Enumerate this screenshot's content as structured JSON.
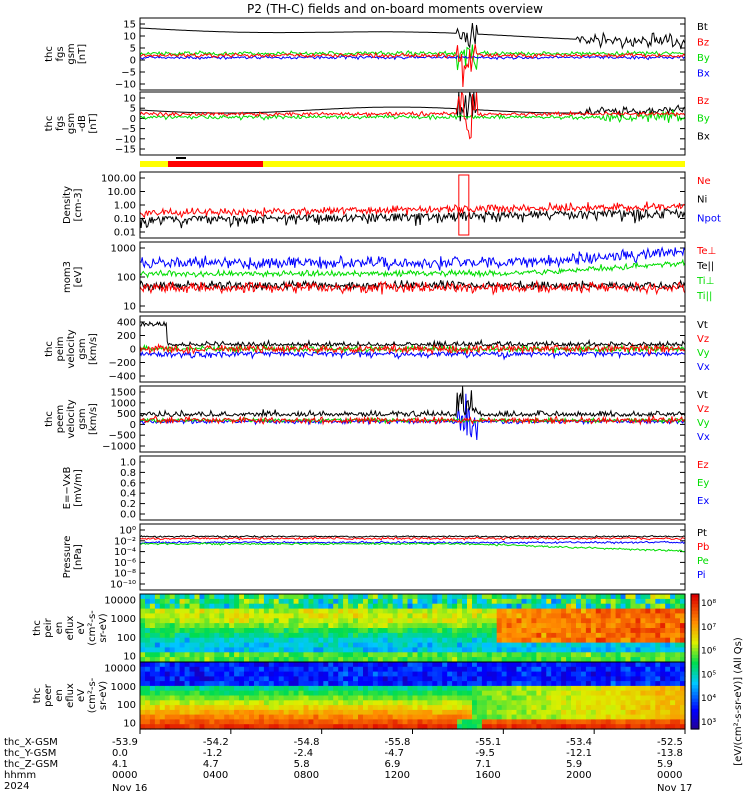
{
  "title": "P2 (TH-C) fields and on-board moments overview",
  "colors": {
    "black": "#000000",
    "red": "#ff0000",
    "green": "#00dd00",
    "blue": "#0000ff",
    "yellow": "#ffff00"
  },
  "panels": [
    {
      "ylabel": [
        "thc",
        "fgs",
        "gsm",
        "[nT]"
      ],
      "ticks": [
        "15",
        "10",
        "5",
        "0",
        "−5",
        "−10"
      ],
      "legend": [
        {
          "t": "Bt",
          "c": "black"
        },
        {
          "t": "Bz",
          "c": "red"
        },
        {
          "t": "By",
          "c": "green"
        },
        {
          "t": "Bx",
          "c": "blue"
        }
      ]
    },
    {
      "ylabel": [
        "thc",
        "fgs",
        "gsm",
        "-dB",
        "[nT]"
      ],
      "ticks": [
        "10",
        "5",
        "0",
        "−5",
        "−10",
        "−15"
      ],
      "legend": [
        {
          "t": "Bz",
          "c": "red"
        },
        {
          "t": "By",
          "c": "green"
        },
        {
          "t": "Bx",
          "c": "black"
        }
      ]
    },
    {
      "ylabel": [
        "Density",
        "[cm-3]"
      ],
      "ticks": [
        "100.00",
        "10.00",
        "1.00",
        "0.10",
        "0.01"
      ],
      "legend": [
        {
          "t": "Ne",
          "c": "red"
        },
        {
          "t": "Ni",
          "c": "black"
        },
        {
          "t": "Npot",
          "c": "blue"
        }
      ]
    },
    {
      "ylabel": [
        "mom3",
        "[eV]"
      ],
      "ticks": [
        "1000",
        "100",
        "10"
      ],
      "legend": [
        {
          "t": "Te⊥",
          "c": "red"
        },
        {
          "t": "Te||",
          "c": "black"
        },
        {
          "t": "Ti⊥",
          "c": "green"
        },
        {
          "t": "Ti||",
          "c": "green"
        }
      ]
    },
    {
      "ylabel": [
        "thc",
        "peim",
        "velocity",
        "gsm",
        "[km/s]"
      ],
      "ticks": [
        "400",
        "200",
        "0",
        "−200",
        "−400"
      ],
      "legend": [
        {
          "t": "Vt",
          "c": "black"
        },
        {
          "t": "Vz",
          "c": "red"
        },
        {
          "t": "Vy",
          "c": "green"
        },
        {
          "t": "Vx",
          "c": "blue"
        }
      ]
    },
    {
      "ylabel": [
        "thc",
        "peem",
        "velocity",
        "gsm",
        "[km/s]"
      ],
      "ticks": [
        "1500",
        "1000",
        "500",
        "0",
        "−500",
        "−1000"
      ],
      "legend": [
        {
          "t": "Vt",
          "c": "black"
        },
        {
          "t": "Vz",
          "c": "red"
        },
        {
          "t": "Vy",
          "c": "green"
        },
        {
          "t": "Vx",
          "c": "blue"
        }
      ]
    },
    {
      "ylabel": [
        "E=−VxB",
        "[mV/m]"
      ],
      "ticks": [
        "1.0",
        "0.8",
        "0.6",
        "0.4",
        "0.2",
        "0.0"
      ],
      "legend": [
        {
          "t": "Ez",
          "c": "red"
        },
        {
          "t": "Ey",
          "c": "green"
        },
        {
          "t": "Ex",
          "c": "blue"
        }
      ]
    },
    {
      "ylabel": [
        "Pressure",
        "[nPa]"
      ],
      "ticks": [
        "10⁰",
        "10⁻²",
        "10⁻⁴",
        "10⁻⁶",
        "10⁻⁸",
        "10⁻¹⁰"
      ],
      "legend": [
        {
          "t": "Pt",
          "c": "black"
        },
        {
          "t": "Pb",
          "c": "red"
        },
        {
          "t": "Pe",
          "c": "green"
        },
        {
          "t": "Pi",
          "c": "blue"
        }
      ]
    },
    {
      "ylabel": [
        "thc",
        "peir",
        "en",
        "eflux",
        "eV",
        "(cm²-s-",
        "sr-eV)"
      ],
      "ticks": [
        "10000",
        "1000",
        "100",
        "10"
      ]
    },
    {
      "ylabel": [
        "thc",
        "peer",
        "en",
        "eflux",
        "eV",
        "(cm²-s-",
        "sr-eV)"
      ],
      "ticks": [
        "10000",
        "1000",
        "100",
        "10"
      ]
    }
  ],
  "colorbar": {
    "label": "[eV/(cm²-s-sr-eV)] (All Qs)",
    "ticks": [
      "10⁸",
      "10⁷",
      "10⁶",
      "10⁵",
      "10⁴",
      "10³"
    ]
  },
  "xaxis": {
    "row_labels": [
      "thc_X-GSM",
      "thc_Y-GSM",
      "thc_Z-GSM",
      "hhmm",
      "2024"
    ],
    "columns": [
      {
        "x": "-53.9",
        "y": "0.0",
        "z": "4.1",
        "t": "0000",
        "d": "Nov 16"
      },
      {
        "x": "-54.2",
        "y": "-1.2",
        "z": "4.7",
        "t": "0400",
        "d": ""
      },
      {
        "x": "-54.8",
        "y": "-2.4",
        "z": "5.8",
        "t": "0800",
        "d": ""
      },
      {
        "x": "-55.8",
        "y": "-4.7",
        "z": "6.9",
        "t": "1200",
        "d": ""
      },
      {
        "x": "-55.1",
        "y": "-9.5",
        "z": "7.1",
        "t": "1600",
        "d": ""
      },
      {
        "x": "-53.4",
        "y": "-12.1",
        "z": "5.9",
        "t": "2000",
        "d": ""
      },
      {
        "x": "-52.5",
        "y": "-13.8",
        "z": "5.9",
        "t": "0000",
        "d": "Nov 17"
      }
    ]
  },
  "chart_data": {
    "type": "line",
    "title": "P2 (TH-C) fields and on-board moments overview",
    "x_time_hours": [
      0,
      1,
      2,
      3,
      4,
      5,
      6,
      7,
      8,
      9,
      10,
      11,
      12,
      13,
      14,
      15,
      16,
      17,
      18,
      19,
      20,
      21,
      22,
      23,
      24
    ],
    "series": [
      {
        "name": "Bt",
        "values": [
          14,
          14.5,
          14,
          13.5,
          13,
          13,
          12.5,
          12,
          11.5,
          11,
          11.5,
          12,
          13,
          13,
          12,
          11,
          10,
          9,
          9,
          8.5,
          8.5,
          8,
          8,
          7,
          6
        ]
      },
      {
        "name": "Bz",
        "values": [
          -1,
          -0.5,
          -0.5,
          0,
          0,
          0,
          0.5,
          0.5,
          0.5,
          0.5,
          0.5,
          0.5,
          0.5,
          0,
          0,
          0,
          0,
          0.5,
          0.5,
          0.5,
          0.5,
          0.5,
          0.5,
          0.5,
          0.5
        ]
      },
      {
        "name": "By",
        "values": [
          0,
          0.5,
          0.5,
          0.5,
          0.5,
          0.5,
          0.5,
          0.5,
          0.5,
          0.5,
          0.5,
          0.5,
          0.5,
          0.5,
          0,
          0,
          0,
          0,
          0,
          0,
          0,
          0,
          0,
          0,
          0
        ]
      },
      {
        "name": "Ne",
        "values": [
          0.1,
          0.12,
          0.15,
          0.15,
          0.12,
          0.12,
          0.12,
          0.15,
          0.2,
          0.2,
          0.25,
          0.25,
          0.3,
          0.4,
          0.3,
          0.3,
          0.35,
          0.3,
          0.3,
          0.3,
          0.35,
          0.35,
          0.4,
          0.4,
          0.4
        ]
      },
      {
        "name": "Ni",
        "values": [
          0.03,
          0.05,
          0.05,
          0.08,
          0.06,
          0.05,
          0.05,
          0.06,
          0.1,
          0.15,
          0.15,
          0.15,
          0.2,
          0.3,
          0.25,
          0.25,
          0.3,
          0.25,
          0.25,
          0.25,
          0.3,
          0.3,
          0.35,
          0.35,
          0.35
        ]
      },
      {
        "name": "Te||",
        "values": [
          100,
          120,
          120,
          130,
          120,
          120,
          130,
          130,
          130,
          120,
          120,
          120,
          100,
          80,
          60,
          60,
          70,
          80,
          100,
          110,
          100,
          110,
          120,
          110,
          100
        ]
      },
      {
        "name": "Ti⊥",
        "values": [
          200,
          200,
          200,
          210,
          200,
          200,
          200,
          200,
          210,
          220,
          220,
          230,
          200,
          200,
          180,
          200,
          250,
          300,
          400,
          500,
          600,
          700,
          600,
          500,
          600
        ]
      }
    ],
    "ylim": [
      -15,
      15
    ]
  }
}
